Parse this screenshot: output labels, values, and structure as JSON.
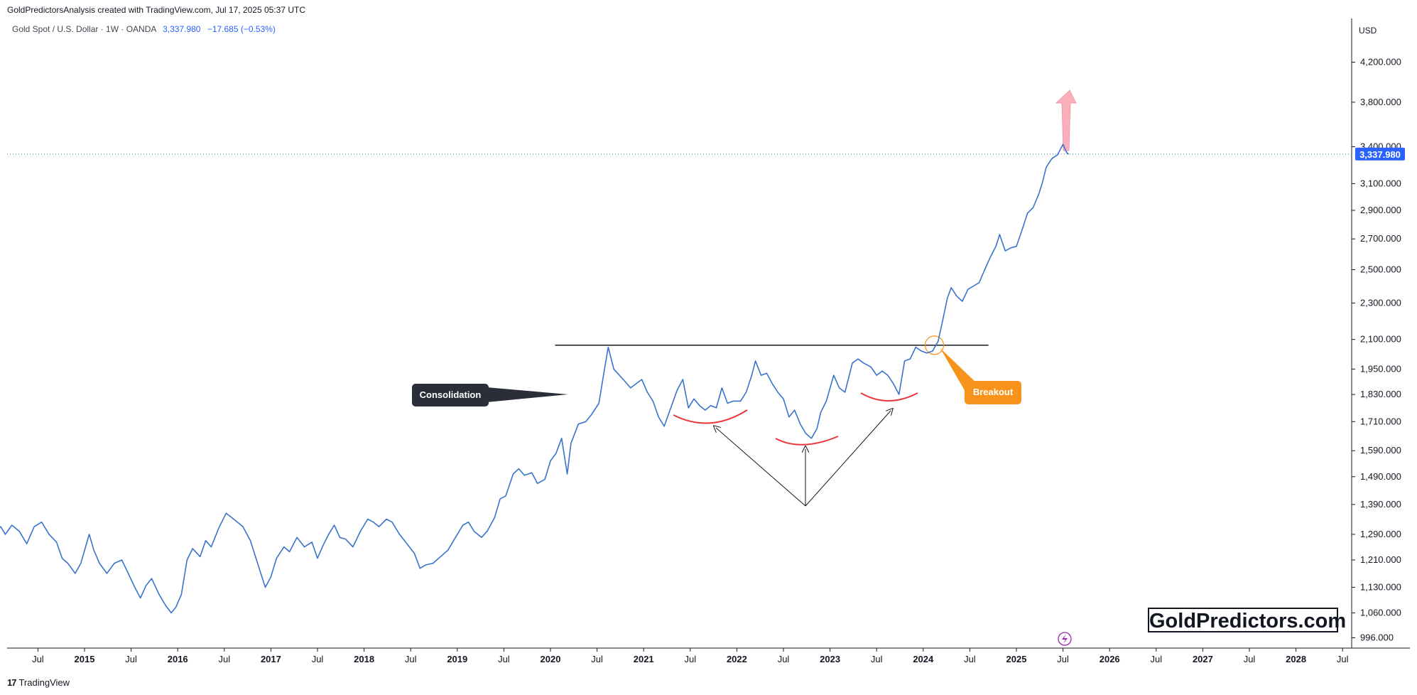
{
  "header": {
    "attribution": "GoldPredictorsAnalysis created with TradingView.com, Jul 17, 2025 05:37 UTC"
  },
  "symbol": {
    "name": "Gold Spot / U.S. Dollar · 1W · OANDA",
    "price": "3,337.980",
    "change": "−17.685 (−0.53%)"
  },
  "currency": "USD",
  "watermark": "GoldPredictors.com",
  "footer": {
    "logo": "17",
    "brand": "TradingView"
  },
  "colors": {
    "line": "#3a73cc",
    "accent": "#2962ff",
    "breakout": "#f7931a",
    "red": "#e8383d",
    "arrow": "#f8a3b0"
  },
  "chart_data": {
    "type": "line",
    "title": "Gold Spot / U.S. Dollar · 1W · OANDA",
    "y_scale": "log",
    "ylim": [
      996,
      4500
    ],
    "xlim": [
      2014.0,
      2028.92
    ],
    "last_price_label": "3,337.980",
    "y_ticks": [
      {
        "value": 4200,
        "label": "4,200.000"
      },
      {
        "value": 3800,
        "label": "3,800.000"
      },
      {
        "value": 3400,
        "label": "3,400.000"
      },
      {
        "value": 3100,
        "label": "3,100.000"
      },
      {
        "value": 2900,
        "label": "2,900.000"
      },
      {
        "value": 2700,
        "label": "2,700.000"
      },
      {
        "value": 2500,
        "label": "2,500.000"
      },
      {
        "value": 2300,
        "label": "2,300.000"
      },
      {
        "value": 2100,
        "label": "2,100.000"
      },
      {
        "value": 1950,
        "label": "1,950.000"
      },
      {
        "value": 1830,
        "label": "1,830.000"
      },
      {
        "value": 1710,
        "label": "1,710.000"
      },
      {
        "value": 1590,
        "label": "1,590.000"
      },
      {
        "value": 1490,
        "label": "1,490.000"
      },
      {
        "value": 1390,
        "label": "1,390.000"
      },
      {
        "value": 1290,
        "label": "1,290.000"
      },
      {
        "value": 1210,
        "label": "1,210.000"
      },
      {
        "value": 1130,
        "label": "1,130.000"
      },
      {
        "value": 1060,
        "label": "1,060.000"
      },
      {
        "value": 996,
        "label": "996.000"
      }
    ],
    "x_ticks": [
      {
        "t": 2014.5,
        "label": "Jul",
        "year": false
      },
      {
        "t": 2015.0,
        "label": "2015",
        "year": true
      },
      {
        "t": 2015.5,
        "label": "Jul",
        "year": false
      },
      {
        "t": 2016.0,
        "label": "2016",
        "year": true
      },
      {
        "t": 2016.5,
        "label": "Jul",
        "year": false
      },
      {
        "t": 2017.0,
        "label": "2017",
        "year": true
      },
      {
        "t": 2017.5,
        "label": "Jul",
        "year": false
      },
      {
        "t": 2018.0,
        "label": "2018",
        "year": true
      },
      {
        "t": 2018.5,
        "label": "Jul",
        "year": false
      },
      {
        "t": 2019.0,
        "label": "2019",
        "year": true
      },
      {
        "t": 2019.5,
        "label": "Jul",
        "year": false
      },
      {
        "t": 2020.0,
        "label": "2020",
        "year": true
      },
      {
        "t": 2020.5,
        "label": "Jul",
        "year": false
      },
      {
        "t": 2021.0,
        "label": "2021",
        "year": true
      },
      {
        "t": 2021.5,
        "label": "Jul",
        "year": false
      },
      {
        "t": 2022.0,
        "label": "2022",
        "year": true
      },
      {
        "t": 2022.5,
        "label": "Jul",
        "year": false
      },
      {
        "t": 2023.0,
        "label": "2023",
        "year": true
      },
      {
        "t": 2023.5,
        "label": "Jul",
        "year": false
      },
      {
        "t": 2024.0,
        "label": "2024",
        "year": true
      },
      {
        "t": 2024.5,
        "label": "Jul",
        "year": false
      },
      {
        "t": 2025.0,
        "label": "2025",
        "year": true
      },
      {
        "t": 2025.5,
        "label": "Jul",
        "year": false
      },
      {
        "t": 2026.0,
        "label": "2026",
        "year": true
      },
      {
        "t": 2026.5,
        "label": "Jul",
        "year": false
      },
      {
        "t": 2027.0,
        "label": "2027",
        "year": true
      },
      {
        "t": 2027.5,
        "label": "Jul",
        "year": false
      },
      {
        "t": 2028.0,
        "label": "2028",
        "year": true
      },
      {
        "t": 2028.5,
        "label": "Jul",
        "year": false
      }
    ],
    "series": [
      {
        "points": [
          [
            2014.0,
            1385
          ],
          [
            2014.04,
            1300
          ],
          [
            2014.1,
            1315
          ],
          [
            2014.15,
            1290
          ],
          [
            2014.22,
            1320
          ],
          [
            2014.3,
            1300
          ],
          [
            2014.38,
            1260
          ],
          [
            2014.46,
            1315
          ],
          [
            2014.54,
            1330
          ],
          [
            2014.62,
            1290
          ],
          [
            2014.7,
            1265
          ],
          [
            2014.76,
            1215
          ],
          [
            2014.82,
            1200
          ],
          [
            2014.9,
            1170
          ],
          [
            2014.96,
            1200
          ],
          [
            2015.05,
            1290
          ],
          [
            2015.1,
            1240
          ],
          [
            2015.16,
            1200
          ],
          [
            2015.24,
            1170
          ],
          [
            2015.32,
            1200
          ],
          [
            2015.4,
            1210
          ],
          [
            2015.46,
            1175
          ],
          [
            2015.54,
            1130
          ],
          [
            2015.6,
            1100
          ],
          [
            2015.66,
            1135
          ],
          [
            2015.72,
            1155
          ],
          [
            2015.8,
            1110
          ],
          [
            2015.87,
            1080
          ],
          [
            2015.93,
            1060
          ],
          [
            2015.98,
            1075
          ],
          [
            2016.04,
            1110
          ],
          [
            2016.1,
            1210
          ],
          [
            2016.16,
            1245
          ],
          [
            2016.24,
            1220
          ],
          [
            2016.3,
            1270
          ],
          [
            2016.36,
            1250
          ],
          [
            2016.44,
            1310
          ],
          [
            2016.52,
            1360
          ],
          [
            2016.58,
            1345
          ],
          [
            2016.64,
            1330
          ],
          [
            2016.7,
            1315
          ],
          [
            2016.78,
            1270
          ],
          [
            2016.84,
            1215
          ],
          [
            2016.94,
            1130
          ],
          [
            2017.0,
            1160
          ],
          [
            2017.06,
            1215
          ],
          [
            2017.14,
            1250
          ],
          [
            2017.2,
            1235
          ],
          [
            2017.28,
            1280
          ],
          [
            2017.36,
            1250
          ],
          [
            2017.44,
            1265
          ],
          [
            2017.5,
            1215
          ],
          [
            2017.56,
            1255
          ],
          [
            2017.62,
            1290
          ],
          [
            2017.68,
            1320
          ],
          [
            2017.74,
            1280
          ],
          [
            2017.8,
            1275
          ],
          [
            2017.88,
            1250
          ],
          [
            2017.96,
            1300
          ],
          [
            2018.04,
            1340
          ],
          [
            2018.1,
            1330
          ],
          [
            2018.16,
            1315
          ],
          [
            2018.24,
            1340
          ],
          [
            2018.3,
            1330
          ],
          [
            2018.38,
            1290
          ],
          [
            2018.46,
            1260
          ],
          [
            2018.54,
            1230
          ],
          [
            2018.6,
            1185
          ],
          [
            2018.66,
            1195
          ],
          [
            2018.74,
            1200
          ],
          [
            2018.82,
            1220
          ],
          [
            2018.9,
            1240
          ],
          [
            2018.98,
            1280
          ],
          [
            2019.06,
            1320
          ],
          [
            2019.12,
            1330
          ],
          [
            2019.18,
            1300
          ],
          [
            2019.26,
            1280
          ],
          [
            2019.32,
            1300
          ],
          [
            2019.4,
            1345
          ],
          [
            2019.46,
            1410
          ],
          [
            2019.52,
            1420
          ],
          [
            2019.6,
            1500
          ],
          [
            2019.66,
            1520
          ],
          [
            2019.72,
            1495
          ],
          [
            2019.8,
            1505
          ],
          [
            2019.86,
            1465
          ],
          [
            2019.94,
            1480
          ],
          [
            2020.0,
            1550
          ],
          [
            2020.06,
            1580
          ],
          [
            2020.12,
            1640
          ],
          [
            2020.18,
            1500
          ],
          [
            2020.22,
            1620
          ],
          [
            2020.3,
            1700
          ],
          [
            2020.38,
            1710
          ],
          [
            2020.44,
            1740
          ],
          [
            2020.52,
            1790
          ],
          [
            2020.58,
            1950
          ],
          [
            2020.62,
            2060
          ],
          [
            2020.68,
            1950
          ],
          [
            2020.74,
            1920
          ],
          [
            2020.8,
            1890
          ],
          [
            2020.86,
            1860
          ],
          [
            2020.92,
            1880
          ],
          [
            2020.98,
            1900
          ],
          [
            2021.04,
            1840
          ],
          [
            2021.1,
            1800
          ],
          [
            2021.16,
            1730
          ],
          [
            2021.22,
            1690
          ],
          [
            2021.3,
            1780
          ],
          [
            2021.36,
            1850
          ],
          [
            2021.42,
            1900
          ],
          [
            2021.48,
            1770
          ],
          [
            2021.54,
            1810
          ],
          [
            2021.6,
            1780
          ],
          [
            2021.66,
            1760
          ],
          [
            2021.72,
            1780
          ],
          [
            2021.78,
            1770
          ],
          [
            2021.84,
            1860
          ],
          [
            2021.9,
            1790
          ],
          [
            2021.96,
            1800
          ],
          [
            2022.04,
            1800
          ],
          [
            2022.1,
            1840
          ],
          [
            2022.16,
            1920
          ],
          [
            2022.2,
            1990
          ],
          [
            2022.26,
            1920
          ],
          [
            2022.32,
            1930
          ],
          [
            2022.38,
            1880
          ],
          [
            2022.44,
            1840
          ],
          [
            2022.5,
            1810
          ],
          [
            2022.56,
            1730
          ],
          [
            2022.62,
            1760
          ],
          [
            2022.68,
            1700
          ],
          [
            2022.74,
            1660
          ],
          [
            2022.8,
            1640
          ],
          [
            2022.86,
            1680
          ],
          [
            2022.9,
            1750
          ],
          [
            2022.96,
            1800
          ],
          [
            2023.04,
            1920
          ],
          [
            2023.1,
            1860
          ],
          [
            2023.16,
            1840
          ],
          [
            2023.24,
            1980
          ],
          [
            2023.3,
            2000
          ],
          [
            2023.36,
            1980
          ],
          [
            2023.44,
            1960
          ],
          [
            2023.5,
            1920
          ],
          [
            2023.56,
            1940
          ],
          [
            2023.62,
            1920
          ],
          [
            2023.68,
            1880
          ],
          [
            2023.74,
            1830
          ],
          [
            2023.8,
            1990
          ],
          [
            2023.86,
            2000
          ],
          [
            2023.92,
            2060
          ],
          [
            2023.98,
            2040
          ],
          [
            2024.04,
            2030
          ],
          [
            2024.1,
            2040
          ],
          [
            2024.16,
            2090
          ],
          [
            2024.2,
            2180
          ],
          [
            2024.26,
            2330
          ],
          [
            2024.3,
            2390
          ],
          [
            2024.36,
            2340
          ],
          [
            2024.42,
            2310
          ],
          [
            2024.48,
            2380
          ],
          [
            2024.54,
            2400
          ],
          [
            2024.6,
            2420
          ],
          [
            2024.66,
            2500
          ],
          [
            2024.72,
            2580
          ],
          [
            2024.78,
            2650
          ],
          [
            2024.82,
            2730
          ],
          [
            2024.88,
            2620
          ],
          [
            2024.94,
            2640
          ],
          [
            2025.0,
            2650
          ],
          [
            2025.06,
            2760
          ],
          [
            2025.12,
            2880
          ],
          [
            2025.18,
            2920
          ],
          [
            2025.24,
            3020
          ],
          [
            2025.28,
            3110
          ],
          [
            2025.32,
            3230
          ],
          [
            2025.38,
            3300
          ],
          [
            2025.44,
            3330
          ],
          [
            2025.5,
            3420
          ],
          [
            2025.54,
            3350
          ],
          [
            2025.56,
            3338
          ]
        ]
      }
    ],
    "annotations": {
      "resistance_level": 2070,
      "resistance_range": [
        2020.05,
        2024.7
      ],
      "consolidation_label": "Consolidation",
      "breakout_label": "Breakout",
      "breakout_point": [
        2024.12,
        2070
      ]
    }
  }
}
